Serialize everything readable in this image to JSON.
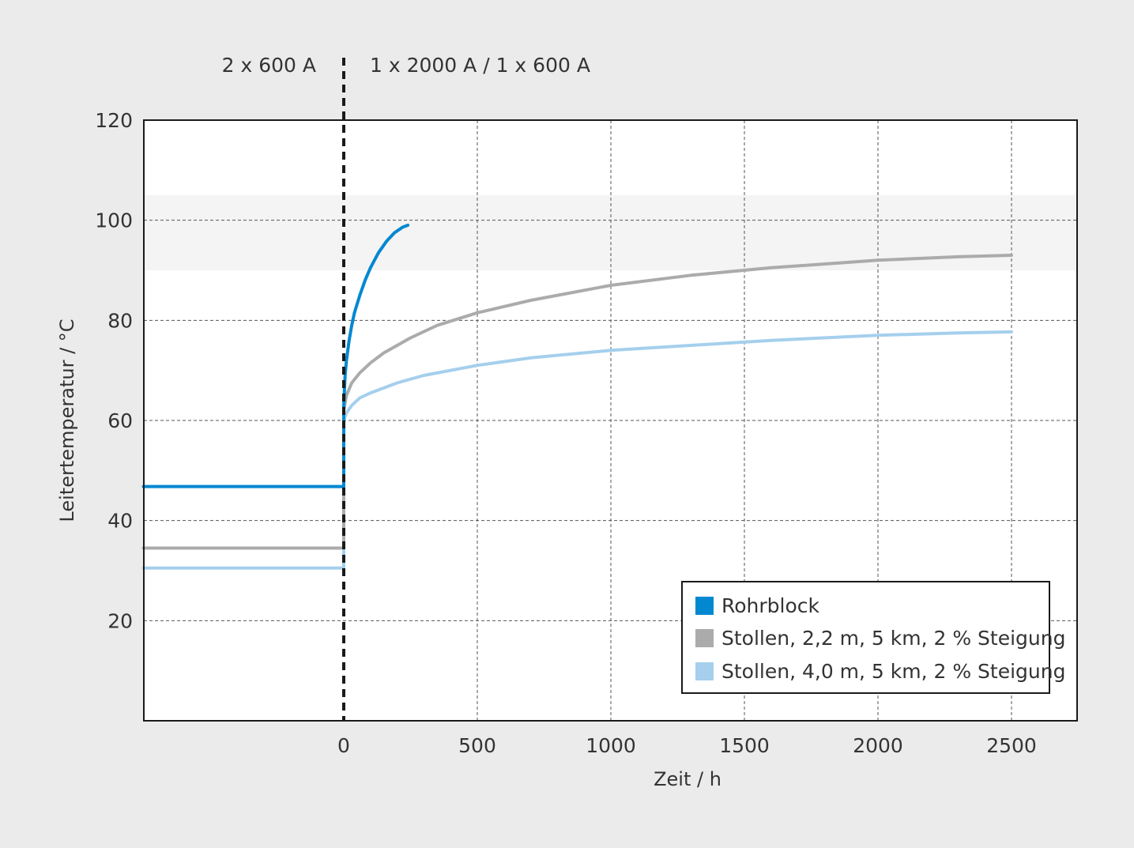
{
  "chart_data": {
    "type": "line",
    "title": "",
    "xlabel": "Zeit / h",
    "ylabel": "Leitertemperatur / °C",
    "xlim": [
      -750,
      2750
    ],
    "ylim": [
      0,
      120
    ],
    "x_ticks": [
      0,
      500,
      1000,
      1500,
      2000,
      2500
    ],
    "x_tick_labels": [
      "0",
      "500",
      "1000",
      "1500",
      "2000",
      "2500"
    ],
    "y_ticks": [
      20,
      40,
      60,
      80,
      100,
      120
    ],
    "y_tick_labels": [
      "20",
      "40",
      "60",
      "80",
      "100",
      "120"
    ],
    "grid": true,
    "band": {
      "y_from": 90,
      "y_to": 105,
      "color": "#f4f4f4"
    },
    "phase_line_x": 0,
    "phase_labels": {
      "before": "2 x 600 A",
      "after": "1 x 2000 A / 1 x 600 A"
    },
    "legend_position": "bottom-right",
    "series": [
      {
        "name": "Rohrblock",
        "color": "#0288d1",
        "points": [
          [
            -750,
            46.8
          ],
          [
            0,
            46.8
          ],
          [
            0,
            63
          ],
          [
            5,
            69
          ],
          [
            10,
            72
          ],
          [
            20,
            76
          ],
          [
            30,
            79
          ],
          [
            40,
            81.5
          ],
          [
            60,
            85
          ],
          [
            80,
            88
          ],
          [
            100,
            90.5
          ],
          [
            130,
            93.5
          ],
          [
            160,
            95.8
          ],
          [
            190,
            97.5
          ],
          [
            220,
            98.6
          ],
          [
            240,
            99
          ]
        ]
      },
      {
        "name": "Stollen, 2,2 m, 5 km, 2 % Steigung",
        "color": "#ababab",
        "points": [
          [
            -750,
            34.5
          ],
          [
            0,
            34.5
          ],
          [
            0,
            62
          ],
          [
            10,
            65
          ],
          [
            30,
            67.5
          ],
          [
            60,
            69.5
          ],
          [
            100,
            71.5
          ],
          [
            150,
            73.5
          ],
          [
            250,
            76.5
          ],
          [
            350,
            79
          ],
          [
            500,
            81.5
          ],
          [
            700,
            84
          ],
          [
            1000,
            87
          ],
          [
            1300,
            89
          ],
          [
            1600,
            90.5
          ],
          [
            2000,
            92
          ],
          [
            2300,
            92.7
          ],
          [
            2500,
            93
          ]
        ]
      },
      {
        "name": "Stollen, 4,0 m, 5 km, 2 % Steigung",
        "color": "#a5cfed",
        "points": [
          [
            -750,
            30.5
          ],
          [
            0,
            30.5
          ],
          [
            0,
            60
          ],
          [
            10,
            61.5
          ],
          [
            30,
            63
          ],
          [
            60,
            64.5
          ],
          [
            100,
            65.5
          ],
          [
            200,
            67.5
          ],
          [
            300,
            69
          ],
          [
            500,
            71
          ],
          [
            700,
            72.5
          ],
          [
            1000,
            74
          ],
          [
            1300,
            75
          ],
          [
            1600,
            76
          ],
          [
            2000,
            77
          ],
          [
            2300,
            77.5
          ],
          [
            2500,
            77.7
          ]
        ]
      }
    ]
  }
}
